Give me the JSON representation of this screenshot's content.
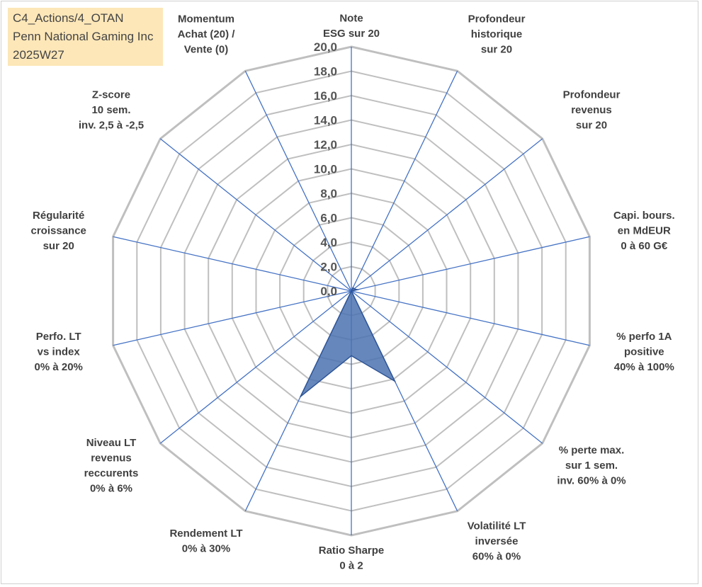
{
  "info": {
    "line1": "C4_Actions/4_OTAN",
    "line2": "Penn National Gaming Inc",
    "line3": "2025W27"
  },
  "chart_data": {
    "type": "radar",
    "title": "",
    "rlim": [
      0,
      20
    ],
    "tick_step": 2,
    "tick_labels": [
      "0,0",
      "2,0",
      "4,0",
      "6,0",
      "8,0",
      "10,0",
      "12,0",
      "14,0",
      "16,0",
      "18,0",
      "20,0"
    ],
    "grid": true,
    "axes": [
      {
        "label": [
          "Note",
          "ESG sur 20"
        ]
      },
      {
        "label": [
          "Profondeur",
          "historique",
          "sur 20"
        ]
      },
      {
        "label": [
          "Profondeur",
          "revenus",
          "sur 20"
        ]
      },
      {
        "label": [
          "Capi. bours.",
          "en MdEUR",
          "0 à 60 G€"
        ]
      },
      {
        "label": [
          "% perfo 1A",
          "positive",
          "40% à 100%"
        ]
      },
      {
        "label": [
          "% perte max.",
          "sur 1 sem.",
          "inv. 60% à 0%"
        ]
      },
      {
        "label": [
          "Volatilité LT",
          "inversée",
          "60% à 0%"
        ]
      },
      {
        "label": [
          "Ratio Sharpe",
          "0 à 2"
        ]
      },
      {
        "label": [
          "Rendement LT",
          "0% à 30%"
        ]
      },
      {
        "label": [
          "Niveau LT",
          "revenus",
          "reccurents",
          "0% à 6%"
        ]
      },
      {
        "label": [
          "Perfo. LT",
          "vs index",
          "0% à 20%"
        ]
      },
      {
        "label": [
          "Régularité",
          "croissance",
          "sur 20"
        ]
      },
      {
        "label": [
          "Z-score",
          "10 sem.",
          "inv. 2,5 à -2,5"
        ]
      },
      {
        "label": [
          "Momentum",
          "Achat (20) /",
          "Vente (0)"
        ]
      }
    ],
    "series": [
      {
        "values": [
          0,
          0.3,
          0.3,
          0.5,
          0,
          0,
          8.2,
          5.3,
          9.6,
          0,
          0,
          0,
          0,
          0
        ]
      }
    ],
    "colors": {
      "grid": "#bfbfbf",
      "spoke": "#4472c4",
      "fill": "#4a72b0",
      "stroke": "#2f5597"
    }
  }
}
